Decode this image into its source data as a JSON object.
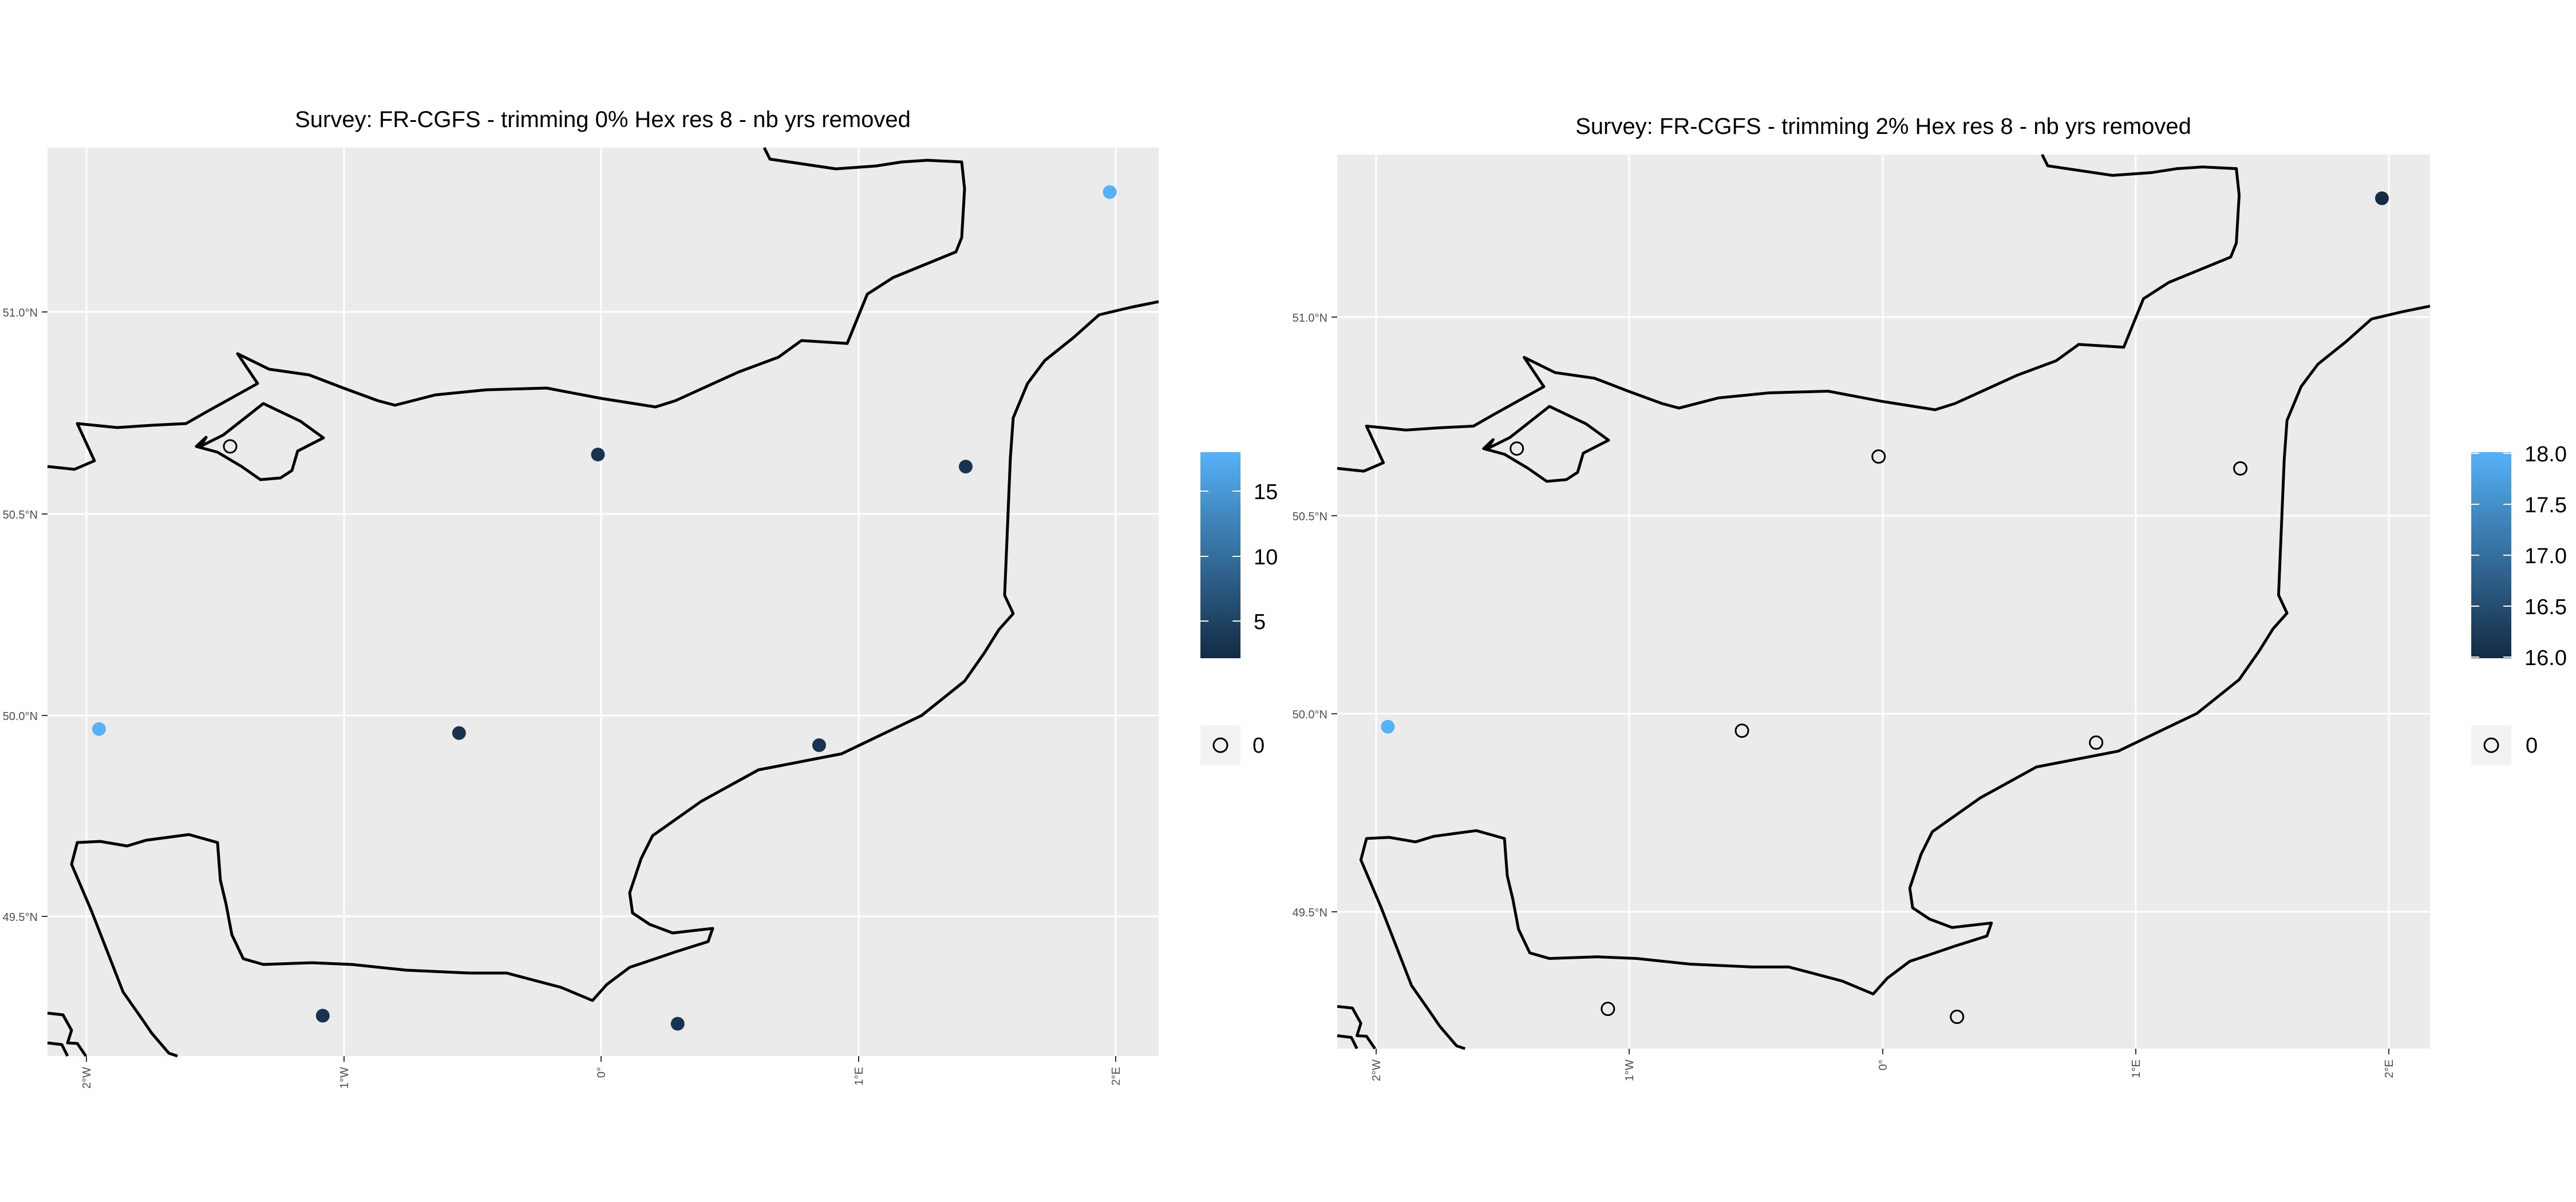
{
  "panels": [
    {
      "title": "Survey: FR-CGFS - trimming 0% Hex res 8 - nb yrs removed",
      "lat_ticks": [
        "51.0°N",
        "50.5°N",
        "50.0°N",
        "49.5°N"
      ],
      "lon_ticks": [
        "2°W",
        "1°W",
        "0°",
        "1°E",
        "2°E"
      ],
      "colorbar_ticks": [
        "15",
        "10",
        "5"
      ],
      "zero_legend_label": "0",
      "colors": {
        "low": "#132B43",
        "high": "#56B1F7"
      }
    },
    {
      "title": "Survey: FR-CGFS - trimming 2% Hex res 8 - nb yrs removed",
      "lat_ticks": [
        "51.0°N",
        "50.5°N",
        "50.0°N",
        "49.5°N"
      ],
      "lon_ticks": [
        "2°W",
        "1°W",
        "0°",
        "1°E",
        "2°E"
      ],
      "colorbar_ticks": [
        "18.0",
        "17.5",
        "17.0",
        "16.5",
        "16.0"
      ],
      "zero_legend_label": "0",
      "colors": {
        "low": "#132B43",
        "high": "#56B1F7"
      }
    }
  ],
  "chart_data": [
    {
      "type": "scatter",
      "title": "Survey: FR-CGFS - trimming 0% Hex res 8 - nb yrs removed",
      "xlim": [
        -2.15,
        2.17
      ],
      "ylim": [
        49.17,
        51.42
      ],
      "color_scale": {
        "min": 1,
        "max": 18,
        "ticks": [
          5,
          10,
          15
        ]
      },
      "points": [
        {
          "lon": 1.98,
          "lat": 51.31,
          "value": 18
        },
        {
          "lon": -1.44,
          "lat": 50.68,
          "value": 0
        },
        {
          "lon": -0.01,
          "lat": 50.66,
          "value": 2
        },
        {
          "lon": 1.42,
          "lat": 50.63,
          "value": 2
        },
        {
          "lon": -1.95,
          "lat": 49.98,
          "value": 18
        },
        {
          "lon": -0.55,
          "lat": 49.97,
          "value": 2
        },
        {
          "lon": 0.85,
          "lat": 49.94,
          "value": 2
        },
        {
          "lon": -1.08,
          "lat": 49.27,
          "value": 2
        },
        {
          "lon": 0.3,
          "lat": 49.25,
          "value": 2
        }
      ]
    },
    {
      "type": "scatter",
      "title": "Survey: FR-CGFS - trimming 2% Hex res 8 - nb yrs removed",
      "xlim": [
        -2.15,
        2.17
      ],
      "ylim": [
        49.17,
        51.42
      ],
      "color_scale": {
        "min": 16,
        "max": 18,
        "ticks": [
          16.0,
          16.5,
          17.0,
          17.5,
          18.0
        ]
      },
      "points": [
        {
          "lon": 1.98,
          "lat": 51.31,
          "value": 16
        },
        {
          "lon": -1.44,
          "lat": 50.68,
          "value": 0
        },
        {
          "lon": -0.01,
          "lat": 50.66,
          "value": 0
        },
        {
          "lon": 1.42,
          "lat": 50.63,
          "value": 0
        },
        {
          "lon": -1.95,
          "lat": 49.98,
          "value": 18
        },
        {
          "lon": -0.55,
          "lat": 49.97,
          "value": 0
        },
        {
          "lon": 0.85,
          "lat": 49.94,
          "value": 0
        },
        {
          "lon": -1.08,
          "lat": 49.27,
          "value": 0
        },
        {
          "lon": 0.3,
          "lat": 49.25,
          "value": 0
        }
      ]
    }
  ]
}
